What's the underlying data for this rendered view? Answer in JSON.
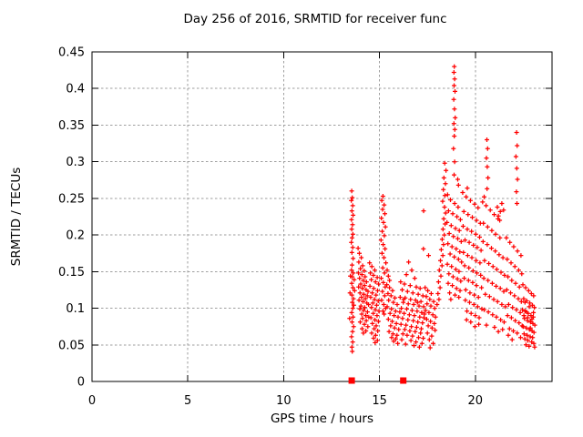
{
  "colors": {
    "background": "#ffffff",
    "axis": "#000000",
    "grid": "#9e9e9e",
    "marker": "#ff0000"
  },
  "chart_data": {
    "type": "scatter",
    "title": "Day 256 of 2016, SRMTID for receiver func",
    "xlabel": "GPS time / hours",
    "ylabel": "SRMTID / TECUs",
    "xlim": [
      0,
      24
    ],
    "ylim": [
      0,
      0.45
    ],
    "xticks": [
      0,
      5,
      10,
      15,
      20
    ],
    "xtick_labels": [
      "0",
      "5",
      "10",
      "15",
      "20"
    ],
    "yticks": [
      0,
      0.05,
      0.1,
      0.15,
      0.2,
      0.25,
      0.3,
      0.35,
      0.4,
      0.45
    ],
    "ytick_labels": [
      "0",
      "0.05",
      "0.1",
      "0.15",
      "0.2",
      "0.25",
      "0.3",
      "0.35",
      "0.4",
      "0.45"
    ],
    "grid": true,
    "legend_position": "none",
    "marker": "plus",
    "marker_color": "#ff0000",
    "points_format": "flat interleaved [x0,y0,x1,y1,...] in data units (hours, TECUs)",
    "points": [
      13.55,
      0.26,
      13.58,
      0.251,
      13.53,
      0.247,
      13.6,
      0.24,
      13.56,
      0.233,
      13.62,
      0.227,
      13.54,
      0.221,
      13.59,
      0.214,
      13.55,
      0.208,
      13.61,
      0.201,
      13.57,
      0.196,
      13.53,
      0.19,
      13.6,
      0.183,
      13.56,
      0.176,
      13.62,
      0.168,
      13.57,
      0.159,
      13.54,
      0.152,
      13.63,
      0.148,
      13.57,
      0.143,
      13.68,
      0.139,
      13.55,
      0.134,
      13.61,
      0.128,
      13.7,
      0.124,
      13.56,
      0.118,
      13.64,
      0.113,
      13.58,
      0.108,
      13.66,
      0.104,
      13.6,
      0.1,
      13.55,
      0.094,
      13.62,
      0.088,
      13.57,
      0.081,
      13.65,
      0.075,
      13.59,
      0.068,
      13.54,
      0.061,
      13.6,
      0.054,
      13.56,
      0.047,
      13.58,
      0.041,
      13.46,
      0.121,
      13.48,
      0.144,
      13.44,
      0.086,
      13.88,
      0.182,
      13.95,
      0.175,
      14.05,
      0.169,
      13.92,
      0.163,
      14.12,
      0.158,
      14.0,
      0.154,
      14.2,
      0.151,
      13.9,
      0.148,
      14.08,
      0.146,
      14.25,
      0.143,
      13.96,
      0.141,
      14.15,
      0.138,
      14.32,
      0.136,
      14.02,
      0.133,
      14.22,
      0.131,
      13.91,
      0.129,
      14.1,
      0.127,
      14.3,
      0.125,
      14.4,
      0.123,
      13.98,
      0.121,
      14.18,
      0.119,
      14.36,
      0.117,
      14.06,
      0.115,
      14.26,
      0.113,
      13.93,
      0.111,
      14.14,
      0.109,
      14.34,
      0.107,
      14.43,
      0.105,
      14.03,
      0.103,
      14.23,
      0.101,
      13.97,
      0.099,
      14.17,
      0.097,
      14.37,
      0.095,
      14.07,
      0.092,
      14.28,
      0.09,
      14.44,
      0.088,
      14.11,
      0.086,
      14.31,
      0.083,
      13.99,
      0.081,
      14.21,
      0.078,
      14.39,
      0.075,
      14.09,
      0.072,
      14.29,
      0.069,
      14.16,
      0.066,
      14.48,
      0.162,
      14.6,
      0.157,
      14.75,
      0.152,
      14.52,
      0.148,
      14.68,
      0.145,
      14.88,
      0.142,
      14.57,
      0.139,
      14.79,
      0.136,
      14.95,
      0.133,
      14.5,
      0.13,
      14.7,
      0.127,
      14.9,
      0.124,
      14.62,
      0.121,
      14.82,
      0.118,
      14.54,
      0.115,
      14.74,
      0.112,
      14.93,
      0.11,
      14.65,
      0.107,
      14.85,
      0.104,
      14.58,
      0.101,
      14.78,
      0.098,
      14.97,
      0.096,
      14.67,
      0.093,
      14.87,
      0.09,
      14.55,
      0.087,
      14.76,
      0.084,
      14.94,
      0.082,
      14.63,
      0.079,
      14.83,
      0.076,
      14.72,
      0.072,
      14.91,
      0.069,
      14.59,
      0.066,
      14.8,
      0.063,
      14.69,
      0.059,
      14.89,
      0.056,
      14.77,
      0.053,
      15.18,
      0.253,
      15.12,
      0.247,
      15.24,
      0.241,
      15.16,
      0.235,
      15.28,
      0.229,
      15.1,
      0.223,
      15.21,
      0.217,
      15.31,
      0.211,
      15.14,
      0.205,
      15.25,
      0.199,
      15.08,
      0.193,
      15.19,
      0.187,
      15.29,
      0.181,
      15.13,
      0.175,
      15.23,
      0.169,
      15.33,
      0.162,
      15.17,
      0.155,
      15.26,
      0.148,
      15.09,
      0.141,
      15.2,
      0.135,
      15.3,
      0.129,
      15.15,
      0.123,
      15.27,
      0.117,
      15.11,
      0.111,
      15.22,
      0.105,
      15.32,
      0.1,
      15.18,
      0.096,
      15.24,
      0.092,
      15.38,
      0.132,
      15.52,
      0.128,
      15.68,
      0.124,
      15.44,
      0.12,
      15.6,
      0.117,
      15.8,
      0.114,
      15.48,
      0.111,
      15.72,
      0.108,
      15.92,
      0.105,
      15.4,
      0.102,
      15.62,
      0.099,
      15.84,
      0.096,
      15.55,
      0.093,
      15.76,
      0.09,
      15.97,
      0.088,
      15.46,
      0.085,
      15.66,
      0.082,
      15.88,
      0.079,
      15.58,
      0.076,
      15.79,
      0.073,
      16.0,
      0.071,
      15.5,
      0.068,
      15.7,
      0.065,
      15.91,
      0.063,
      15.63,
      0.06,
      15.85,
      0.058,
      15.74,
      0.055,
      15.95,
      0.052,
      15.4,
      0.152,
      15.46,
      0.144,
      15.52,
      0.138,
      16.52,
      0.163,
      16.68,
      0.152,
      16.4,
      0.146,
      16.84,
      0.141,
      16.1,
      0.136,
      16.3,
      0.133,
      16.6,
      0.131,
      16.92,
      0.129,
      17.12,
      0.127,
      16.18,
      0.125,
      16.46,
      0.123,
      16.74,
      0.121,
      17.02,
      0.119,
      17.26,
      0.117,
      16.08,
      0.115,
      16.34,
      0.114,
      16.62,
      0.112,
      16.88,
      0.111,
      17.16,
      0.109,
      16.24,
      0.108,
      16.5,
      0.106,
      16.78,
      0.105,
      17.06,
      0.103,
      17.3,
      0.102,
      16.14,
      0.1,
      16.42,
      0.099,
      16.7,
      0.097,
      16.96,
      0.096,
      17.2,
      0.094,
      16.28,
      0.093,
      16.56,
      0.091,
      16.82,
      0.09,
      17.1,
      0.088,
      17.32,
      0.087,
      16.2,
      0.086,
      16.48,
      0.084,
      16.76,
      0.083,
      17.0,
      0.081,
      17.24,
      0.08,
      16.12,
      0.078,
      16.38,
      0.077,
      16.66,
      0.075,
      16.94,
      0.074,
      17.18,
      0.072,
      16.32,
      0.071,
      16.58,
      0.069,
      16.86,
      0.068,
      17.14,
      0.066,
      16.22,
      0.065,
      16.44,
      0.063,
      16.72,
      0.062,
      17.04,
      0.06,
      17.28,
      0.059,
      16.16,
      0.057,
      16.64,
      0.056,
      16.9,
      0.054,
      17.22,
      0.052,
      16.36,
      0.051,
      16.8,
      0.049,
      17.08,
      0.047,
      16.26,
      0.112,
      16.98,
      0.108,
      17.34,
      0.092,
      16.06,
      0.095,
      17.38,
      0.128,
      17.52,
      0.124,
      17.7,
      0.12,
      17.44,
      0.116,
      17.62,
      0.112,
      17.82,
      0.109,
      17.48,
      0.106,
      17.68,
      0.103,
      17.88,
      0.1,
      17.4,
      0.097,
      17.58,
      0.094,
      17.78,
      0.091,
      17.92,
      0.088,
      17.46,
      0.085,
      17.66,
      0.082,
      17.86,
      0.079,
      17.54,
      0.076,
      17.74,
      0.073,
      17.9,
      0.07,
      17.5,
      0.066,
      17.72,
      0.062,
      17.6,
      0.057,
      17.8,
      0.052,
      17.64,
      0.046,
      17.29,
      0.181,
      17.56,
      0.172,
      17.3,
      0.233,
      18.0,
      0.105,
      18.1,
      0.112,
      18.05,
      0.12,
      18.16,
      0.128,
      18.08,
      0.136,
      18.2,
      0.144,
      18.12,
      0.152,
      18.26,
      0.158,
      18.18,
      0.165,
      18.3,
      0.172,
      18.22,
      0.18,
      18.34,
      0.187,
      18.27,
      0.194,
      18.38,
      0.2,
      18.31,
      0.208,
      18.42,
      0.215,
      18.35,
      0.222,
      18.45,
      0.23,
      18.39,
      0.238,
      18.29,
      0.246,
      18.41,
      0.254,
      18.33,
      0.262,
      18.44,
      0.27,
      18.36,
      0.278,
      18.47,
      0.288,
      18.4,
      0.298,
      18.9,
      0.43,
      18.88,
      0.422,
      18.92,
      0.413,
      18.89,
      0.404,
      18.94,
      0.396,
      18.87,
      0.385,
      18.91,
      0.372,
      18.95,
      0.36,
      18.88,
      0.352,
      18.93,
      0.344,
      18.9,
      0.335,
      18.86,
      0.318,
      18.92,
      0.3,
      18.89,
      0.282,
      18.55,
      0.255,
      18.7,
      0.248,
      18.92,
      0.243,
      19.1,
      0.238,
      18.6,
      0.233,
      18.82,
      0.229,
      19.04,
      0.225,
      19.22,
      0.221,
      18.52,
      0.217,
      18.74,
      0.213,
      18.96,
      0.209,
      19.16,
      0.206,
      18.64,
      0.202,
      18.86,
      0.198,
      19.08,
      0.195,
      19.26,
      0.191,
      18.57,
      0.188,
      18.78,
      0.184,
      19.0,
      0.181,
      19.19,
      0.177,
      18.68,
      0.174,
      18.9,
      0.17,
      19.12,
      0.167,
      19.28,
      0.163,
      18.54,
      0.16,
      18.76,
      0.157,
      18.98,
      0.153,
      19.15,
      0.15,
      18.62,
      0.147,
      18.84,
      0.143,
      19.06,
      0.14,
      19.24,
      0.137,
      18.58,
      0.134,
      18.8,
      0.131,
      19.02,
      0.127,
      19.2,
      0.124,
      18.66,
      0.121,
      18.94,
      0.118,
      19.14,
      0.115,
      18.72,
      0.112,
      19.34,
      0.258,
      19.52,
      0.252,
      19.74,
      0.247,
      19.96,
      0.242,
      20.14,
      0.237,
      19.4,
      0.232,
      19.62,
      0.228,
      19.84,
      0.224,
      20.06,
      0.22,
      20.26,
      0.216,
      19.36,
      0.212,
      19.58,
      0.208,
      19.8,
      0.205,
      20.02,
      0.201,
      20.22,
      0.197,
      19.46,
      0.193,
      19.68,
      0.19,
      19.9,
      0.186,
      20.1,
      0.183,
      20.3,
      0.179,
      19.38,
      0.176,
      19.6,
      0.172,
      19.82,
      0.169,
      20.04,
      0.165,
      20.24,
      0.162,
      19.44,
      0.158,
      19.66,
      0.155,
      19.88,
      0.151,
      20.08,
      0.148,
      20.28,
      0.145,
      19.42,
      0.141,
      19.64,
      0.138,
      19.86,
      0.135,
      20.06,
      0.131,
      20.32,
      0.128,
      19.5,
      0.125,
      19.72,
      0.121,
      19.94,
      0.118,
      20.16,
      0.115,
      19.48,
      0.111,
      19.7,
      0.108,
      19.92,
      0.105,
      20.12,
      0.102,
      20.34,
      0.099,
      19.56,
      0.096,
      19.78,
      0.093,
      20.0,
      0.09,
      20.2,
      0.087,
      19.54,
      0.084,
      19.76,
      0.081,
      20.18,
      0.078,
      19.98,
      0.075,
      19.08,
      0.276,
      19.12,
      0.268,
      19.58,
      0.264,
      20.46,
      0.252,
      20.6,
      0.33,
      20.64,
      0.318,
      20.58,
      0.305,
      20.62,
      0.293,
      20.66,
      0.278,
      20.61,
      0.263,
      20.38,
      0.245,
      20.56,
      0.24,
      20.78,
      0.234,
      20.98,
      0.228,
      21.18,
      0.222,
      20.42,
      0.216,
      20.64,
      0.211,
      20.86,
      0.206,
      21.06,
      0.201,
      21.28,
      0.196,
      20.4,
      0.191,
      20.62,
      0.187,
      20.84,
      0.182,
      21.04,
      0.178,
      21.24,
      0.173,
      21.44,
      0.169,
      20.48,
      0.165,
      20.7,
      0.161,
      20.92,
      0.157,
      21.12,
      0.153,
      21.34,
      0.149,
      21.52,
      0.145,
      20.44,
      0.141,
      20.66,
      0.138,
      20.88,
      0.134,
      21.08,
      0.13,
      21.3,
      0.127,
      21.48,
      0.123,
      20.52,
      0.119,
      20.74,
      0.116,
      20.96,
      0.112,
      21.16,
      0.109,
      21.38,
      0.105,
      21.56,
      0.102,
      20.46,
      0.098,
      20.68,
      0.095,
      20.9,
      0.091,
      21.1,
      0.088,
      21.32,
      0.084,
      21.5,
      0.081,
      20.58,
      0.077,
      21.0,
      0.074,
      21.42,
      0.071,
      21.2,
      0.068,
      21.15,
      0.238,
      21.47,
      0.234,
      21.38,
      0.243,
      21.2,
      0.226,
      21.3,
      0.232,
      21.27,
      0.22,
      22.15,
      0.34,
      22.18,
      0.322,
      22.12,
      0.307,
      22.16,
      0.291,
      22.2,
      0.276,
      22.14,
      0.259,
      22.17,
      0.243,
      21.62,
      0.196,
      21.8,
      0.19,
      22.0,
      0.184,
      22.2,
      0.178,
      22.38,
      0.172,
      21.66,
      0.167,
      21.86,
      0.162,
      22.06,
      0.157,
      22.26,
      0.152,
      22.42,
      0.147,
      21.7,
      0.143,
      21.9,
      0.138,
      22.1,
      0.134,
      22.3,
      0.129,
      21.64,
      0.125,
      21.84,
      0.121,
      22.04,
      0.117,
      22.24,
      0.113,
      22.4,
      0.109,
      21.74,
      0.105,
      21.94,
      0.101,
      22.14,
      0.098,
      22.34,
      0.094,
      21.68,
      0.09,
      21.88,
      0.087,
      22.08,
      0.083,
      22.28,
      0.08,
      22.44,
      0.076,
      21.78,
      0.072,
      21.98,
      0.069,
      22.18,
      0.066,
      21.72,
      0.063,
      22.36,
      0.06,
      21.92,
      0.057,
      22.48,
      0.132,
      22.62,
      0.128,
      22.78,
      0.124,
      22.92,
      0.12,
      23.04,
      0.117,
      22.52,
      0.113,
      22.68,
      0.11,
      22.84,
      0.107,
      22.98,
      0.104,
      23.08,
      0.101,
      22.46,
      0.098,
      22.6,
      0.096,
      22.76,
      0.093,
      22.9,
      0.09,
      23.02,
      0.088,
      22.56,
      0.086,
      22.72,
      0.083,
      22.88,
      0.081,
      23.0,
      0.079,
      23.1,
      0.077,
      22.5,
      0.075,
      22.66,
      0.073,
      22.82,
      0.071,
      22.96,
      0.069,
      23.06,
      0.067,
      22.54,
      0.065,
      22.7,
      0.063,
      22.86,
      0.061,
      22.99,
      0.06,
      22.58,
      0.058,
      22.74,
      0.056,
      22.94,
      0.054,
      23.05,
      0.052,
      22.64,
      0.05,
      22.8,
      0.048,
      23.09,
      0.047,
      22.53,
      0.09,
      22.67,
      0.095,
      22.81,
      0.102,
      22.95,
      0.085,
      23.03,
      0.094,
      22.59,
      0.108,
      22.73,
      0.087,
      22.87,
      0.073
    ],
    "baseline_markers": {
      "marker": "filled-square",
      "y": 0,
      "x": [
        13.55,
        16.24
      ]
    }
  }
}
